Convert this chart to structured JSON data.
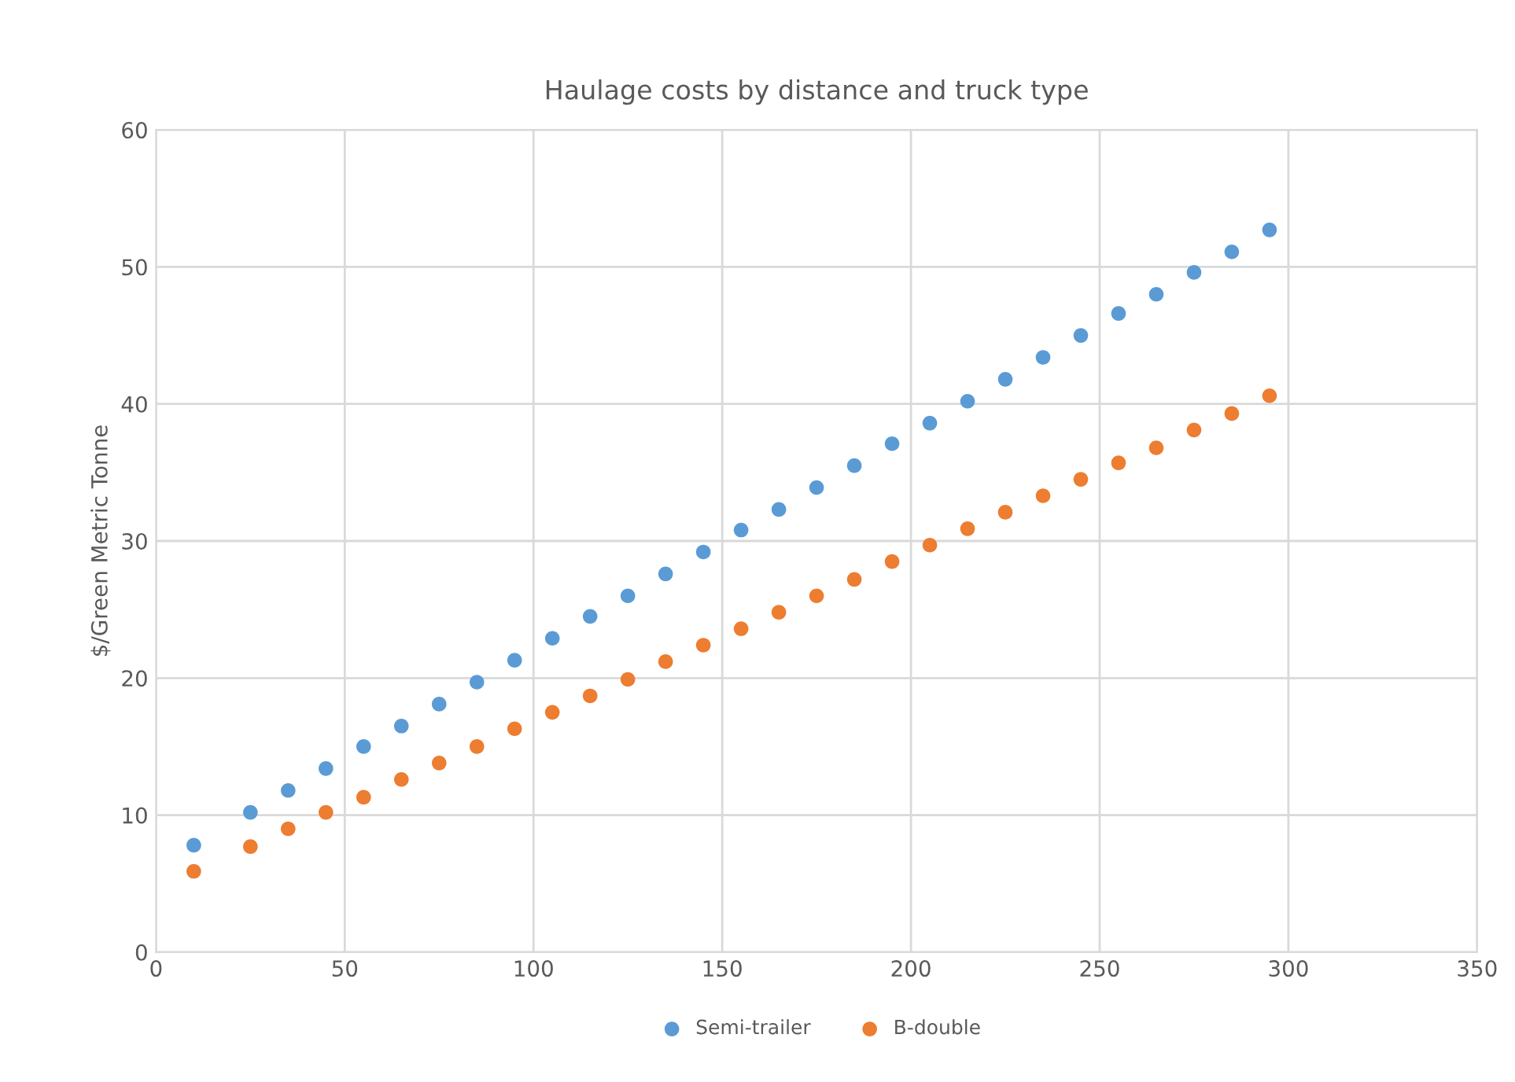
{
  "chart_data": {
    "type": "scatter",
    "title": "Haulage costs by distance and truck type",
    "ylabel": "$/Green Metric Tonne",
    "x": [
      10,
      25,
      35,
      45,
      55,
      65,
      75,
      85,
      95,
      105,
      115,
      125,
      135,
      145,
      155,
      165,
      175,
      185,
      195,
      205,
      215,
      225,
      235,
      245,
      255,
      265,
      275,
      285,
      295
    ],
    "series": [
      {
        "name": "Semi-trailer",
        "color": "#5b9bd5",
        "values": [
          7.8,
          10.2,
          11.8,
          13.4,
          15.0,
          16.5,
          18.1,
          19.7,
          21.3,
          22.9,
          24.5,
          26.0,
          27.6,
          29.2,
          30.8,
          32.3,
          33.9,
          35.5,
          37.1,
          38.6,
          40.2,
          41.8,
          43.4,
          45.0,
          46.6,
          48.0,
          49.6,
          51.1,
          52.7
        ]
      },
      {
        "name": "B-double",
        "color": "#ed7d31",
        "values": [
          5.9,
          7.7,
          9.0,
          10.2,
          11.3,
          12.6,
          13.8,
          15.0,
          16.3,
          17.5,
          18.7,
          19.9,
          21.2,
          22.4,
          23.6,
          24.8,
          26.0,
          27.2,
          28.5,
          29.7,
          30.9,
          32.1,
          33.3,
          34.5,
          35.7,
          36.8,
          38.1,
          39.3,
          40.6
        ]
      }
    ],
    "xlim": [
      0,
      350
    ],
    "xticks": [
      0,
      50,
      100,
      150,
      200,
      250,
      300,
      350
    ],
    "ylim": [
      0,
      60
    ],
    "yticks": [
      0,
      10,
      20,
      30,
      40,
      50,
      60
    ],
    "grid": true,
    "legend": "bottom",
    "marker": "circle"
  }
}
